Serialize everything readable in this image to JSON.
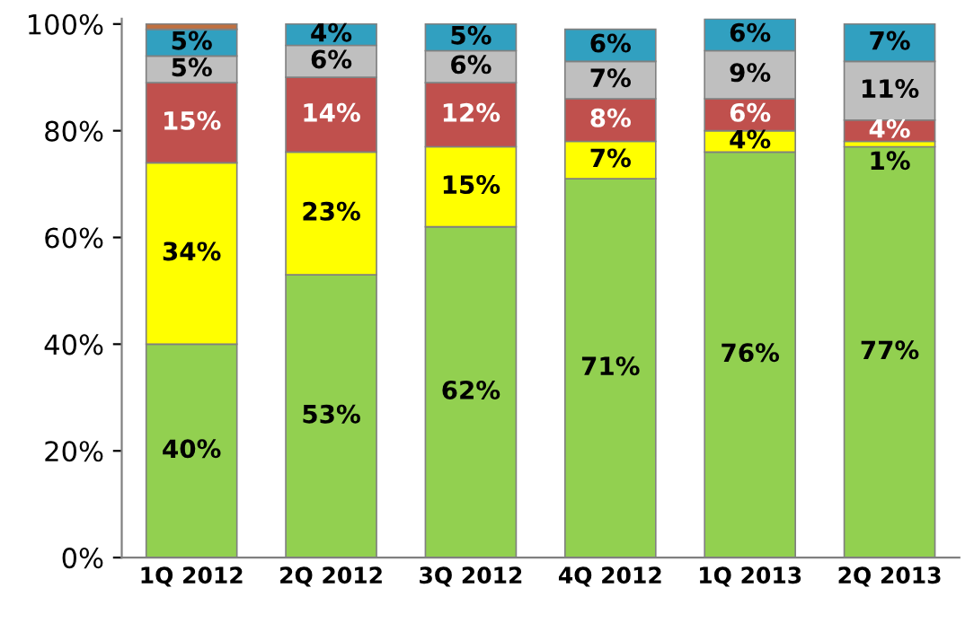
{
  "chart_data": {
    "type": "bar",
    "stacked": true,
    "categories": [
      "1Q 2012",
      "2Q 2012",
      "3Q 2012",
      "4Q 2012",
      "1Q 2013",
      "2Q 2013"
    ],
    "series": [
      {
        "color": "#92d050",
        "values": [
          40,
          53,
          62,
          71,
          76,
          77
        ],
        "value_labels": [
          "40%",
          "53%",
          "62%",
          "71%",
          "76%",
          "77%"
        ]
      },
      {
        "color": "#ffff00",
        "values": [
          34,
          23,
          15,
          7,
          4,
          1
        ],
        "value_labels": [
          "34%",
          "23%",
          "15%",
          "7%",
          "4%",
          "1%"
        ]
      },
      {
        "color": "#c0504d",
        "values": [
          15,
          14,
          12,
          8,
          6,
          4
        ],
        "value_labels": [
          "15%",
          "14%",
          "12%",
          "8%",
          "6%",
          "4%"
        ]
      },
      {
        "color": "#bfbfbf",
        "values": [
          5,
          6,
          6,
          7,
          9,
          11
        ],
        "value_labels": [
          "5%",
          "6%",
          "6%",
          "7%",
          "9%",
          "11%"
        ]
      },
      {
        "color": "#31a0c0",
        "values": [
          5,
          4,
          5,
          6,
          6,
          7
        ],
        "value_labels": [
          "5%",
          "4%",
          "5%",
          "6%",
          "6%",
          "7%"
        ]
      },
      {
        "color": "#c07040",
        "values": [
          1,
          null,
          null,
          null,
          null,
          null
        ],
        "value_labels": [
          null,
          null,
          null,
          null,
          null,
          null
        ]
      }
    ],
    "ylim": [
      0,
      101
    ],
    "yticks": [
      {
        "value": 0,
        "label": "0%"
      },
      {
        "value": 20,
        "label": "20%"
      },
      {
        "value": 40,
        "label": "40%"
      },
      {
        "value": 60,
        "label": "60%"
      },
      {
        "value": 80,
        "label": "80%"
      },
      {
        "value": 100,
        "label": "100%"
      }
    ],
    "grid": false,
    "legend": false
  }
}
